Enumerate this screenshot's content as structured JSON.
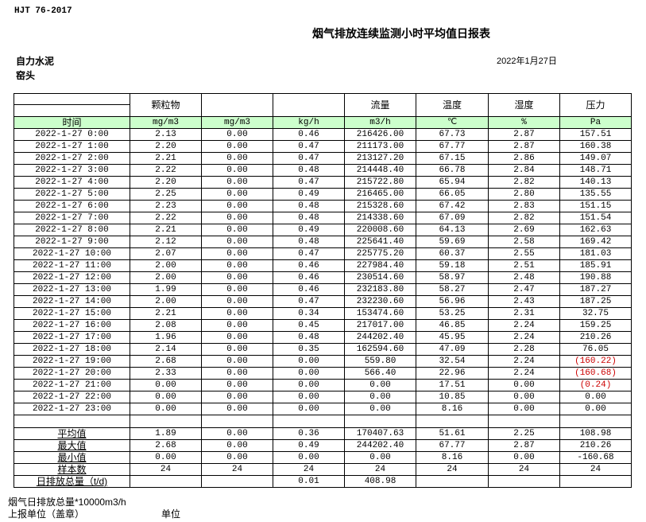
{
  "header": {
    "standard": "HJT  76-2017",
    "title": "烟气排放连续监测小时平均值日报表",
    "company": "自力水泥",
    "unit": "窑头",
    "date": "2022年1月27日"
  },
  "table": {
    "columns": [
      "",
      "颗粒物",
      "",
      "",
      "流量",
      "温度",
      "湿度",
      "压力"
    ],
    "units": [
      "时间",
      "mg/m3",
      "mg/m3",
      "kg/h",
      "m3/h",
      "℃",
      "%",
      "Pa"
    ],
    "rows": [
      [
        "2022-1-27 0:00",
        "2.13",
        "0.00",
        "0.46",
        "216426.00",
        "67.73",
        "2.87",
        "157.51"
      ],
      [
        "2022-1-27 1:00",
        "2.20",
        "0.00",
        "0.47",
        "211173.00",
        "67.77",
        "2.87",
        "160.38"
      ],
      [
        "2022-1-27 2:00",
        "2.21",
        "0.00",
        "0.47",
        "213127.20",
        "67.15",
        "2.86",
        "149.07"
      ],
      [
        "2022-1-27 3:00",
        "2.22",
        "0.00",
        "0.48",
        "214448.40",
        "66.78",
        "2.84",
        "148.71"
      ],
      [
        "2022-1-27 4:00",
        "2.20",
        "0.00",
        "0.47",
        "215722.80",
        "65.94",
        "2.82",
        "140.13"
      ],
      [
        "2022-1-27 5:00",
        "2.25",
        "0.00",
        "0.49",
        "216465.00",
        "66.05",
        "2.80",
        "135.55"
      ],
      [
        "2022-1-27 6:00",
        "2.23",
        "0.00",
        "0.48",
        "215328.60",
        "67.42",
        "2.83",
        "151.15"
      ],
      [
        "2022-1-27 7:00",
        "2.22",
        "0.00",
        "0.48",
        "214338.60",
        "67.09",
        "2.82",
        "151.54"
      ],
      [
        "2022-1-27 8:00",
        "2.21",
        "0.00",
        "0.49",
        "220008.60",
        "64.13",
        "2.69",
        "162.63"
      ],
      [
        "2022-1-27 9:00",
        "2.12",
        "0.00",
        "0.48",
        "225641.40",
        "59.69",
        "2.58",
        "169.42"
      ],
      [
        "2022-1-27 10:00",
        "2.07",
        "0.00",
        "0.47",
        "225775.20",
        "60.37",
        "2.55",
        "181.03"
      ],
      [
        "2022-1-27 11:00",
        "2.00",
        "0.00",
        "0.46",
        "227984.40",
        "59.18",
        "2.51",
        "185.91"
      ],
      [
        "2022-1-27 12:00",
        "2.00",
        "0.00",
        "0.46",
        "230514.60",
        "58.97",
        "2.48",
        "190.88"
      ],
      [
        "2022-1-27 13:00",
        "1.99",
        "0.00",
        "0.46",
        "232183.80",
        "58.27",
        "2.47",
        "187.27"
      ],
      [
        "2022-1-27 14:00",
        "2.00",
        "0.00",
        "0.47",
        "232230.60",
        "56.96",
        "2.43",
        "187.25"
      ],
      [
        "2022-1-27 15:00",
        "2.21",
        "0.00",
        "0.34",
        "153474.60",
        "53.25",
        "2.31",
        "32.75"
      ],
      [
        "2022-1-27 16:00",
        "2.08",
        "0.00",
        "0.45",
        "217017.00",
        "46.85",
        "2.24",
        "159.25"
      ],
      [
        "2022-1-27 17:00",
        "1.96",
        "0.00",
        "0.48",
        "244202.40",
        "45.95",
        "2.24",
        "210.26"
      ],
      [
        "2022-1-27 18:00",
        "2.14",
        "0.00",
        "0.35",
        "162594.60",
        "47.09",
        "2.28",
        "76.05"
      ],
      [
        "2022-1-27 19:00",
        "2.68",
        "0.00",
        "0.00",
        "559.80",
        "32.54",
        "2.24",
        "(160.22)"
      ],
      [
        "2022-1-27 20:00",
        "2.33",
        "0.00",
        "0.00",
        "566.40",
        "22.96",
        "2.24",
        "(160.68)"
      ],
      [
        "2022-1-27 21:00",
        "0.00",
        "0.00",
        "0.00",
        "0.00",
        "17.51",
        "0.00",
        "(0.24)"
      ],
      [
        "2022-1-27 22:00",
        "0.00",
        "0.00",
        "0.00",
        "0.00",
        "10.85",
        "0.00",
        "0.00"
      ],
      [
        "2022-1-27 23:00",
        "0.00",
        "0.00",
        "0.00",
        "0.00",
        "8.16",
        "0.00",
        "0.00"
      ]
    ],
    "summary": [
      [
        "平均值",
        "1.89",
        "0.00",
        "0.36",
        "170407.63",
        "51.61",
        "2.25",
        "108.98"
      ],
      [
        "最大值",
        "2.68",
        "0.00",
        "0.49",
        "244202.40",
        "67.77",
        "2.87",
        "210.26"
      ],
      [
        "最小值",
        "0.00",
        "0.00",
        "0.00",
        "0.00",
        "8.16",
        "0.00",
        "-160.68"
      ],
      [
        "样本数",
        "24",
        "24",
        "24",
        "24",
        "24",
        "24",
        "24"
      ],
      [
        "日排放总量（t/d)",
        "",
        "",
        "0.01",
        "408.98",
        "",
        "",
        ""
      ]
    ]
  },
  "footer": {
    "line1": "烟气日排放总量*10000m3/h",
    "line2": "上报单位（盖章）",
    "line3": "单位"
  },
  "colors": {
    "units_row_bg": "#ccffcc",
    "negative_text": "#cc0000"
  }
}
